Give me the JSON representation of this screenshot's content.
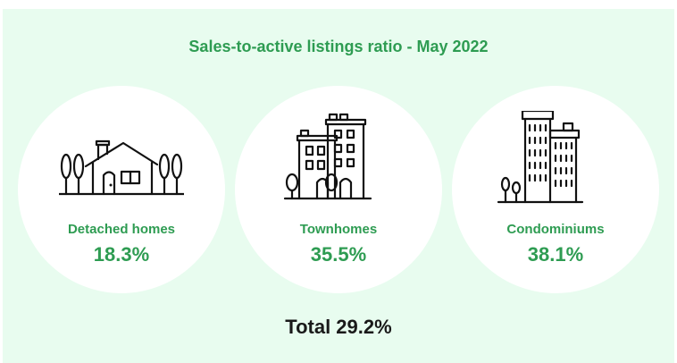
{
  "chart_data": {
    "type": "table",
    "title": "Sales-to-active listings ratio - May 2022",
    "categories": [
      "Detached homes",
      "Townhomes",
      "Condominiums"
    ],
    "values": [
      18.3,
      35.5,
      38.1
    ],
    "value_labels": [
      "18.3%",
      "35.5%",
      "38.1%"
    ],
    "total_label": "Total 29.2%",
    "total_value": 29.2,
    "unit": "%"
  },
  "icons": [
    "house-icon",
    "townhouse-icon",
    "condo-tower-icon"
  ],
  "colors": {
    "panel": "#e8fcef",
    "accent": "#2e9c52",
    "circle": "#ffffff",
    "total_text": "#1a1a1a"
  }
}
